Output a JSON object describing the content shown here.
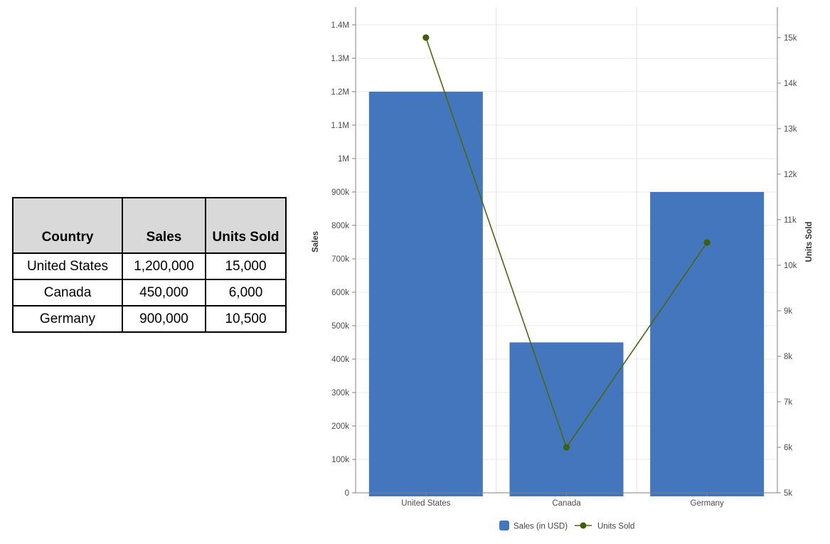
{
  "table": {
    "columns": [
      "Country",
      "Sales",
      "Units Sold"
    ],
    "rows": [
      [
        "United States",
        "1,200,000",
        "15,000"
      ],
      [
        "Canada",
        "450,000",
        "6,000"
      ],
      [
        "Germany",
        "900,000",
        "10,500"
      ]
    ]
  },
  "chart_data": {
    "type": "bar+line combo (dual axis)",
    "categories": [
      "United States",
      "Canada",
      "Germany"
    ],
    "series": [
      {
        "name": "Sales (in USD)",
        "type": "bar",
        "axis": "left",
        "values": [
          1200000,
          450000,
          900000
        ],
        "color": "#4476bd"
      },
      {
        "name": "Units Sold",
        "type": "line",
        "axis": "right",
        "values": [
          15000,
          6000,
          10500
        ],
        "color": "#48690f",
        "dot_color": "#3f600b"
      }
    ],
    "left_axis": {
      "label": "Sales",
      "min": 0,
      "max": 1453000,
      "ticks": [
        {
          "v": 0,
          "label": "0"
        },
        {
          "v": 100000,
          "label": "100k"
        },
        {
          "v": 200000,
          "label": "200k"
        },
        {
          "v": 300000,
          "label": "300k"
        },
        {
          "v": 400000,
          "label": "400k"
        },
        {
          "v": 500000,
          "label": "500k"
        },
        {
          "v": 600000,
          "label": "600k"
        },
        {
          "v": 700000,
          "label": "700k"
        },
        {
          "v": 800000,
          "label": "800k"
        },
        {
          "v": 900000,
          "label": "900k"
        },
        {
          "v": 1000000,
          "label": "1M"
        },
        {
          "v": 1100000,
          "label": "1.1M"
        },
        {
          "v": 1200000,
          "label": "1.2M"
        },
        {
          "v": 1300000,
          "label": "1.3M"
        },
        {
          "v": 1400000,
          "label": "1.4M"
        }
      ]
    },
    "right_axis": {
      "label": "Units Sold",
      "min": 5000,
      "max": 15670,
      "ticks": [
        {
          "v": 5000,
          "label": "5k"
        },
        {
          "v": 6000,
          "label": "6k"
        },
        {
          "v": 7000,
          "label": "7k"
        },
        {
          "v": 8000,
          "label": "8k"
        },
        {
          "v": 9000,
          "label": "9k"
        },
        {
          "v": 10000,
          "label": "10k"
        },
        {
          "v": 11000,
          "label": "11k"
        },
        {
          "v": 12000,
          "label": "12k"
        },
        {
          "v": 13000,
          "label": "13k"
        },
        {
          "v": 14000,
          "label": "14k"
        },
        {
          "v": 15000,
          "label": "15k"
        }
      ]
    },
    "legend": [
      {
        "label": "Sales (in USD)",
        "marker": "square"
      },
      {
        "label": "Units Sold",
        "marker": "line-dot"
      }
    ],
    "grid": true,
    "legend_position": "bottom-center",
    "colors": {
      "grid_h": "#e8e8e8",
      "grid_v": "#e2e2e2",
      "axis_line": "#808080",
      "tick_label": "#4d4d4d",
      "axis_title": "#333333",
      "legend_text": "#444444"
    }
  }
}
